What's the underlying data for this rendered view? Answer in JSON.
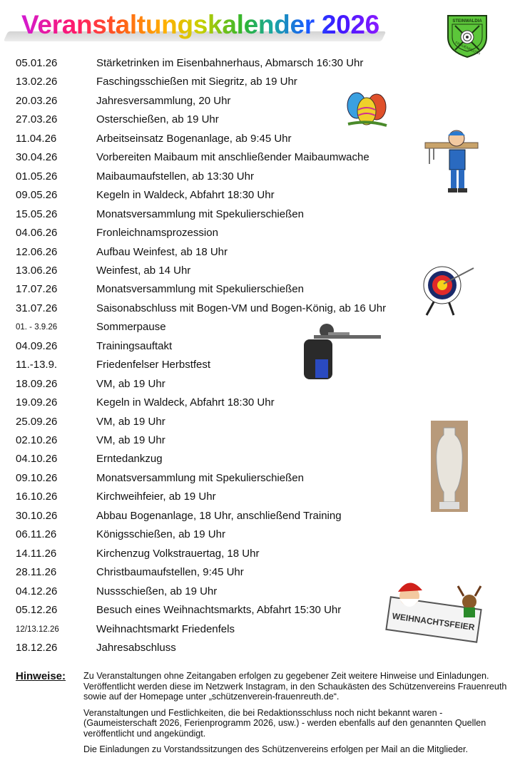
{
  "title": "Veranstaltungskalender 2026",
  "logo": {
    "top_text": "STEINWALDIA",
    "bottom_text": "FRAUENREUTH",
    "color": "#5cc63a"
  },
  "events": [
    {
      "date": "05.01.26",
      "text": "Stärketrinken im Eisenbahnerhaus, Abmarsch 16:30 Uhr"
    },
    {
      "date": "13.02.26",
      "text": "Faschingsschießen mit Siegritz, ab 19 Uhr"
    },
    {
      "date": "20.03.26",
      "text": "Jahresversammlung, 20 Uhr"
    },
    {
      "date": "27.03.26",
      "text": "Osterschießen, ab 19 Uhr"
    },
    {
      "date": "11.04.26",
      "text": "Arbeitseinsatz Bogenanlage, ab 9:45 Uhr"
    },
    {
      "date": "30.04.26",
      "text": "Vorbereiten Maibaum mit anschließender Maibaumwache"
    },
    {
      "date": "01.05.26",
      "text": "Maibaumaufstellen, ab 13:30 Uhr"
    },
    {
      "date": "09.05.26",
      "text": "Kegeln in Waldeck, Abfahrt 18:30 Uhr"
    },
    {
      "date": "15.05.26",
      "text": "Monatsversammlung mit Spekulierschießen"
    },
    {
      "date": "04.06.26",
      "text": "Fronleichnamsprozession"
    },
    {
      "date": "12.06.26",
      "text": "Aufbau Weinfest, ab 18 Uhr"
    },
    {
      "date": "13.06.26",
      "text": "Weinfest, ab 14 Uhr"
    },
    {
      "date": "17.07.26",
      "text": "Monatsversammlung mit Spekulierschießen"
    },
    {
      "date": "31.07.26",
      "text": "Saisonabschluss mit Bogen-VM und Bogen-König, ab 16 Uhr"
    },
    {
      "date": "01. - 3.9.26",
      "text": "Sommerpause",
      "small": true
    },
    {
      "date": "04.09.26",
      "text": "Trainingsauftakt"
    },
    {
      "date": "11.-13.9.",
      "text": "Friedenfelser Herbstfest"
    },
    {
      "date": "18.09.26",
      "text": "VM, ab 19 Uhr"
    },
    {
      "date": "19.09.26",
      "text": "Kegeln in Waldeck, Abfahrt 18:30 Uhr"
    },
    {
      "date": "25.09.26",
      "text": "VM, ab 19 Uhr"
    },
    {
      "date": "02.10.26",
      "text": "VM, ab 19 Uhr"
    },
    {
      "date": "04.10.26",
      "text": "Erntedankzug"
    },
    {
      "date": "09.10.26",
      "text": "Monatsversammlung mit Spekulierschießen"
    },
    {
      "date": "16.10.26",
      "text": "Kirchweihfeier, ab 19 Uhr"
    },
    {
      "date": "30.10.26",
      "text": "Abbau Bogenanlage, 18 Uhr, anschließend Training"
    },
    {
      "date": "06.11.26",
      "text": "Königsschießen, ab 19 Uhr"
    },
    {
      "date": "14.11.26",
      "text": "Kirchenzug Volkstrauertag, 18 Uhr"
    },
    {
      "date": "28.11.26",
      "text": "Christbaumaufstellen, 9:45 Uhr"
    },
    {
      "date": "04.12.26",
      "text": "Nussschießen, ab 19 Uhr"
    },
    {
      "date": "05.12.26",
      "text": "Besuch eines Weihnachtsmarkts, Abfahrt 15:30 Uhr"
    },
    {
      "date": "12/13.12.26",
      "text": "Weihnachtsmarkt Friedenfels",
      "small": true
    },
    {
      "date": "18.12.26",
      "text": "Jahresabschluss"
    }
  ],
  "images": {
    "christmas_sign_text": "WEIHNACHTSFEIER"
  },
  "notes": {
    "label": "Hinweise:",
    "paragraphs": [
      "Zu Veranstaltungen ohne Zeitangaben erfolgen zu gegebener Zeit weitere Hinweise und Einladungen. Veröffentlicht werden diese im Netzwerk Instagram, in den Schaukästen des Schützenvereins Frauenreuth sowie auf der Homepage unter „schützenverein-frauenreuth.de“.",
      "Veranstaltungen und Festlichkeiten, die bei Redaktionsschluss noch nicht bekannt waren - (Gaumeisterschaft 2026, Ferienprogramm 2026, usw.) - werden ebenfalls auf den genannten Quellen veröffentlicht und angekündigt.",
      "Die Einladungen zu Vorstandssitzungen des Schützenvereins erfolgen per Mail an die Mitglieder."
    ]
  }
}
